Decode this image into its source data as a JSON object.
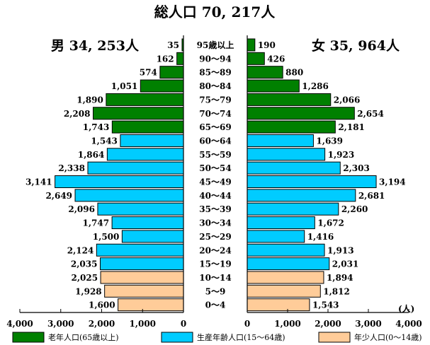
{
  "chart_data": {
    "type": "bar",
    "title": "総人口 70, 217人",
    "unit": "(人)",
    "categories": [
      "95歳以上",
      "90～94",
      "85～89",
      "80～84",
      "75～79",
      "70～74",
      "65～69",
      "60～64",
      "55～59",
      "50～54",
      "45～49",
      "40～44",
      "35～39",
      "30～34",
      "25～29",
      "20～24",
      "15～19",
      "10～14",
      "5～9",
      "0～4"
    ],
    "series": [
      {
        "name": "男 34, 253人",
        "values": [
          35,
          162,
          574,
          1051,
          1890,
          2208,
          1743,
          1543,
          1864,
          2338,
          3141,
          2649,
          2096,
          1747,
          1500,
          2124,
          2035,
          2025,
          1928,
          1600
        ]
      },
      {
        "name": "女 35, 964人",
        "values": [
          190,
          426,
          880,
          1286,
          2066,
          2654,
          2181,
          1639,
          1923,
          2303,
          3194,
          2681,
          2260,
          1672,
          1416,
          1913,
          2031,
          1894,
          1812,
          1543
        ]
      }
    ],
    "group_of_row": [
      "old",
      "old",
      "old",
      "old",
      "old",
      "old",
      "old",
      "work",
      "work",
      "work",
      "work",
      "work",
      "work",
      "work",
      "work",
      "work",
      "work",
      "young",
      "young",
      "young"
    ],
    "value_labels_male": [
      "35",
      "162",
      "574",
      "1,051",
      "1,890",
      "2,208",
      "1,743",
      "1,543",
      "1,864",
      "2,338",
      "3,141",
      "2,649",
      "2,096",
      "1,747",
      "1,500",
      "2,124",
      "2,035",
      "2,025",
      "1,928",
      "1,600"
    ],
    "value_labels_female": [
      "190",
      "426",
      "880",
      "1,286",
      "2,066",
      "2,654",
      "2,181",
      "1,639",
      "1,923",
      "2,303",
      "3,194",
      "2,681",
      "2,260",
      "1,672",
      "1,416",
      "1,913",
      "2,031",
      "1,894",
      "1,812",
      "1,543"
    ],
    "xlim": [
      0,
      4000
    ],
    "male_tick_labels": [
      "4,000",
      "3,000",
      "2,000",
      "1,000",
      "0"
    ],
    "female_tick_labels": [
      "0",
      "1,000",
      "2,000",
      "3,000",
      "4,000"
    ],
    "legend": [
      {
        "key": "old",
        "label": "老年人口(65歳以上)",
        "color": "#008000"
      },
      {
        "key": "work",
        "label": "生産年齢人口(15～64歳)",
        "color": "#00ccff"
      },
      {
        "key": "young",
        "label": "年少人口(0～14歳)",
        "color": "#ffcc99"
      }
    ]
  }
}
